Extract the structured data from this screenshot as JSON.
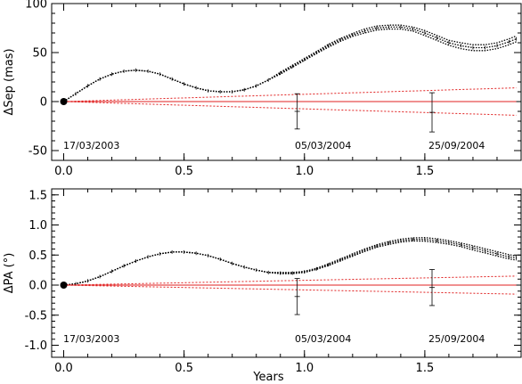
{
  "chart_data": [
    {
      "type": "line",
      "panel": "top",
      "ylabel": "ΔSep (mas)",
      "xlim": [
        -0.05,
        1.9
      ],
      "ylim": [
        -60,
        100
      ],
      "yticks": [
        -50,
        0,
        50,
        100
      ],
      "xticks": [
        0.0,
        0.5,
        1.0,
        1.5
      ],
      "xticklabels": [
        "0.0",
        "0.5",
        "1.0",
        "1.5"
      ],
      "annotations": [
        "17/03/2003",
        "05/03/2004",
        "25/09/2004"
      ],
      "origin_point": {
        "x": 0.0,
        "y": 0
      },
      "series": [
        {
          "style": "black dotted triple band",
          "x": [
            0.0,
            0.05,
            0.1,
            0.15,
            0.2,
            0.25,
            0.3,
            0.35,
            0.4,
            0.45,
            0.5,
            0.55,
            0.6,
            0.65,
            0.7,
            0.75,
            0.8,
            0.85,
            0.9,
            0.95,
            1.0,
            1.05,
            1.1,
            1.15,
            1.2,
            1.25,
            1.3,
            1.35,
            1.4,
            1.45,
            1.5,
            1.55,
            1.6,
            1.65,
            1.7,
            1.75,
            1.8,
            1.85,
            1.88
          ],
          "y": [
            0,
            8,
            16,
            23,
            28,
            31,
            32,
            31,
            28,
            23,
            18,
            14,
            11,
            10,
            10,
            12,
            16,
            22,
            29,
            36,
            43,
            50,
            57,
            63,
            68,
            72,
            75,
            76,
            76,
            74,
            70,
            65,
            60,
            57,
            55,
            55,
            57,
            61,
            64
          ],
          "band_offset": [
            0,
            0,
            0,
            0,
            0,
            0,
            0,
            0,
            0,
            0,
            0,
            0,
            0,
            0,
            0,
            0,
            0,
            0,
            1,
            1,
            1,
            1,
            1.5,
            1.5,
            1.5,
            2,
            2,
            2,
            2,
            2,
            2.5,
            2.5,
            2.5,
            3,
            3,
            3,
            3,
            3,
            3
          ]
        },
        {
          "style": "red solid",
          "x": [
            0.0,
            1.88
          ],
          "y": [
            0,
            0
          ]
        },
        {
          "style": "red dotted upper",
          "x": [
            0.0,
            1.88
          ],
          "y": [
            0,
            14
          ]
        },
        {
          "style": "red dotted lower",
          "x": [
            0.0,
            1.88
          ],
          "y": [
            0,
            -14
          ]
        }
      ],
      "error_points": [
        {
          "x": 0.97,
          "y": -10,
          "err": 18
        },
        {
          "x": 1.53,
          "y": -11,
          "err": 20
        }
      ]
    },
    {
      "type": "line",
      "panel": "bottom",
      "ylabel": "ΔPA (°)",
      "xlabel": "Years",
      "xlim": [
        -0.05,
        1.9
      ],
      "ylim": [
        -1.2,
        1.6
      ],
      "yticks": [
        -1.0,
        -0.5,
        0.0,
        0.5,
        1.0,
        1.5
      ],
      "yticklabels": [
        "-1.0",
        "-0.5",
        "0.0",
        "0.5",
        "1.0",
        "1.5"
      ],
      "xticks": [
        0.0,
        0.5,
        1.0,
        1.5
      ],
      "xticklabels": [
        "0.0",
        "0.5",
        "1.0",
        "1.5"
      ],
      "annotations": [
        "17/03/2003",
        "05/03/2004",
        "25/09/2004"
      ],
      "origin_point": {
        "x": 0.0,
        "y": 0
      },
      "series": [
        {
          "style": "black dotted triple band",
          "x": [
            0.0,
            0.05,
            0.1,
            0.15,
            0.2,
            0.25,
            0.3,
            0.35,
            0.4,
            0.45,
            0.5,
            0.55,
            0.6,
            0.65,
            0.7,
            0.75,
            0.8,
            0.85,
            0.9,
            0.95,
            1.0,
            1.05,
            1.1,
            1.15,
            1.2,
            1.25,
            1.3,
            1.35,
            1.4,
            1.45,
            1.5,
            1.55,
            1.6,
            1.65,
            1.7,
            1.75,
            1.8,
            1.85,
            1.88
          ],
          "y": [
            0,
            0.02,
            0.07,
            0.14,
            0.23,
            0.32,
            0.4,
            0.47,
            0.52,
            0.55,
            0.55,
            0.53,
            0.49,
            0.43,
            0.36,
            0.3,
            0.25,
            0.21,
            0.2,
            0.2,
            0.22,
            0.27,
            0.34,
            0.42,
            0.5,
            0.58,
            0.65,
            0.7,
            0.74,
            0.76,
            0.76,
            0.74,
            0.71,
            0.67,
            0.62,
            0.57,
            0.52,
            0.47,
            0.45
          ],
          "band_offset": [
            0,
            0,
            0,
            0,
            0,
            0,
            0,
            0,
            0,
            0,
            0,
            0,
            0,
            0,
            0,
            0,
            0,
            0,
            0.01,
            0.01,
            0.01,
            0.01,
            0.015,
            0.015,
            0.02,
            0.02,
            0.02,
            0.025,
            0.025,
            0.025,
            0.03,
            0.03,
            0.03,
            0.03,
            0.035,
            0.035,
            0.035,
            0.035,
            0.035
          ]
        },
        {
          "style": "red solid",
          "x": [
            0.0,
            1.88
          ],
          "y": [
            0,
            0
          ]
        },
        {
          "style": "red dotted upper",
          "x": [
            0.0,
            1.88
          ],
          "y": [
            0,
            0.15
          ]
        },
        {
          "style": "red dotted lower",
          "x": [
            0.0,
            1.88
          ],
          "y": [
            0,
            -0.15
          ]
        }
      ],
      "error_points": [
        {
          "x": 0.97,
          "y": -0.19,
          "err": 0.3
        },
        {
          "x": 1.53,
          "y": -0.04,
          "err": 0.3
        }
      ]
    }
  ]
}
